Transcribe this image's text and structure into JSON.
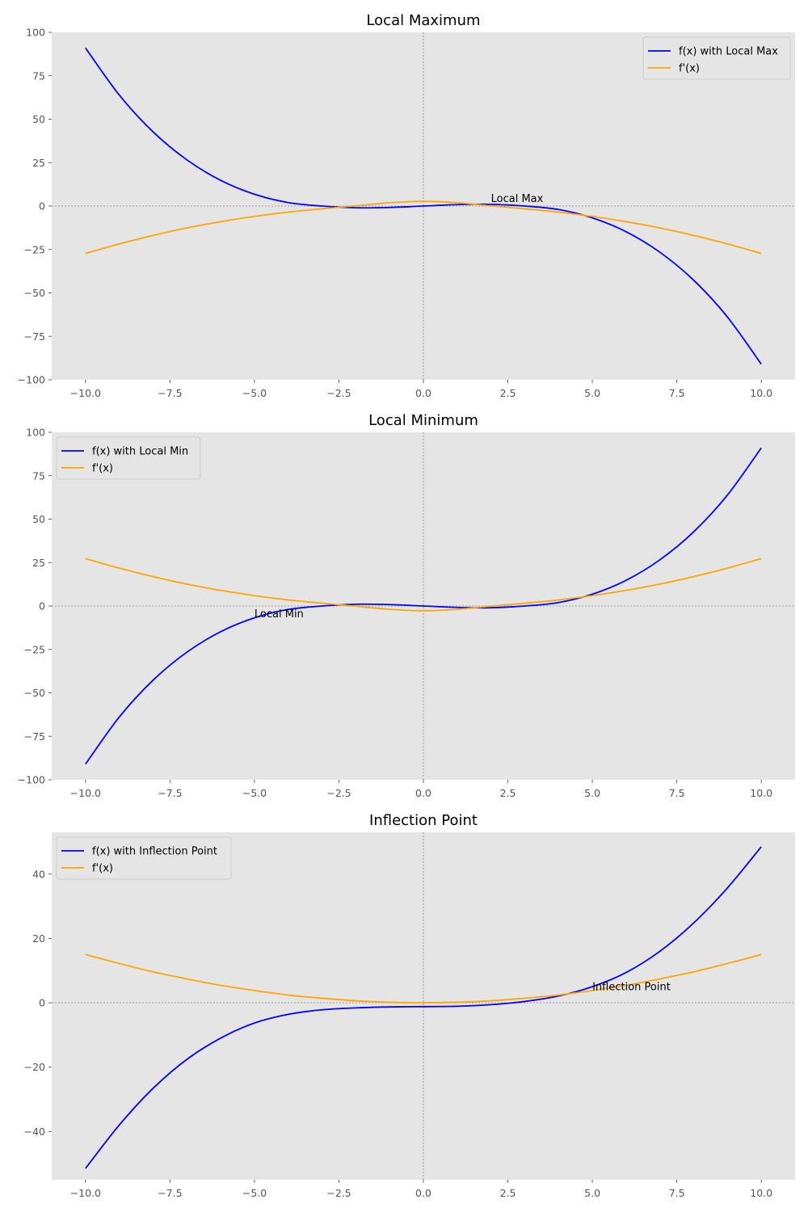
{
  "chart_data": [
    {
      "type": "line",
      "title": "Local Maximum",
      "xlabel": "",
      "ylabel": "",
      "xlim": [
        -11,
        11
      ],
      "ylim": [
        -100,
        100
      ],
      "x_ticks": [
        -10,
        -7.5,
        -5,
        -2.5,
        0,
        2.5,
        5,
        7.5,
        10
      ],
      "x_tick_labels": [
        "−10.0",
        "−7.5",
        "−5.0",
        "−2.5",
        "0.0",
        "2.5",
        "5.0",
        "7.5",
        "10.0"
      ],
      "y_ticks": [
        -100,
        -75,
        -50,
        -25,
        0,
        25,
        50,
        75,
        100
      ],
      "y_tick_labels": [
        "−100",
        "−75",
        "−50",
        "−25",
        "0",
        "25",
        "50",
        "75",
        "100"
      ],
      "legend_position": "top-right",
      "grid": false,
      "reference_lines": "dashed lines at x = 0 and y = 0",
      "series": [
        {
          "name": "f(x) with Local Max",
          "color": "#0000ff",
          "expression": "-x^3/11 + 3x/11... (cubic)",
          "x": [
            -10,
            -9,
            -8,
            -7,
            -6,
            -5,
            -4,
            -3,
            -2,
            -1,
            0,
            1,
            2,
            3,
            4,
            5,
            6,
            7,
            8,
            9,
            10
          ],
          "y": [
            91,
            63.9,
            42.7,
            26.6,
            14.8,
            6.8,
            2.0,
            0,
            -1.0,
            -0.8,
            0,
            0.8,
            1.0,
            0,
            -2.0,
            -6.8,
            -14.8,
            -26.6,
            -42.7,
            -63.9,
            -91
          ]
        },
        {
          "name": "f'(x)",
          "color": "#ffa500",
          "x": [
            -10,
            -9,
            -8,
            -7,
            -6,
            -5,
            -4,
            -3,
            -2,
            -1,
            0,
            1,
            2,
            3,
            4,
            5,
            6,
            7,
            8,
            9,
            10
          ],
          "y": [
            -27.3,
            -21.8,
            -16.9,
            -12.6,
            -9.0,
            -6.0,
            -3.5,
            -1.6,
            0.1,
            1.9,
            2.7,
            1.9,
            0.1,
            -1.6,
            -3.5,
            -6.0,
            -9.0,
            -12.6,
            -16.9,
            -21.8,
            -27.3
          ]
        }
      ],
      "annotations": [
        {
          "text": "Local Max",
          "x": 2,
          "y": 4.5
        }
      ]
    },
    {
      "type": "line",
      "title": "Local Minimum",
      "xlabel": "",
      "ylabel": "",
      "xlim": [
        -11,
        11
      ],
      "ylim": [
        -100,
        100
      ],
      "x_ticks": [
        -10,
        -7.5,
        -5,
        -2.5,
        0,
        2.5,
        5,
        7.5,
        10
      ],
      "x_tick_labels": [
        "−10.0",
        "−7.5",
        "−5.0",
        "−2.5",
        "0.0",
        "2.5",
        "5.0",
        "7.5",
        "10.0"
      ],
      "y_ticks": [
        -100,
        -75,
        -50,
        -25,
        0,
        25,
        50,
        75,
        100
      ],
      "y_tick_labels": [
        "−100",
        "−75",
        "−50",
        "−25",
        "0",
        "25",
        "50",
        "75",
        "100"
      ],
      "legend_position": "top-left",
      "grid": false,
      "reference_lines": "dashed lines at x = 0 and y = 0",
      "series": [
        {
          "name": "f(x) with Local Min",
          "color": "#0000ff",
          "x": [
            -10,
            -9,
            -8,
            -7,
            -6,
            -5,
            -4,
            -3,
            -2,
            -1,
            0,
            1,
            2,
            3,
            4,
            5,
            6,
            7,
            8,
            9,
            10
          ],
          "y": [
            -91,
            -63.9,
            -42.7,
            -26.6,
            -14.8,
            -6.8,
            -2.0,
            0,
            1.0,
            0.8,
            0,
            -0.8,
            -1.0,
            0,
            2.0,
            6.8,
            14.8,
            26.6,
            42.7,
            63.9,
            91
          ]
        },
        {
          "name": "f'(x)",
          "color": "#ffa500",
          "x": [
            -10,
            -9,
            -8,
            -7,
            -6,
            -5,
            -4,
            -3,
            -2,
            -1,
            0,
            1,
            2,
            3,
            4,
            5,
            6,
            7,
            8,
            9,
            10
          ],
          "y": [
            27.3,
            21.8,
            16.9,
            12.6,
            9.0,
            6.0,
            3.5,
            1.6,
            -0.1,
            -1.9,
            -2.7,
            -1.9,
            -0.1,
            1.6,
            3.5,
            6.0,
            9.0,
            12.6,
            16.9,
            21.8,
            27.3
          ]
        }
      ],
      "annotations": [
        {
          "text": "Local Min",
          "x": -5,
          "y": -4.5
        }
      ]
    },
    {
      "type": "line",
      "title": "Inflection Point",
      "xlabel": "",
      "ylabel": "",
      "xlim": [
        -11,
        11
      ],
      "ylim": [
        -55,
        53
      ],
      "x_ticks": [
        -10,
        -7.5,
        -5,
        -2.5,
        0,
        2.5,
        5,
        7.5,
        10
      ],
      "x_tick_labels": [
        "−10.0",
        "−7.5",
        "−5.0",
        "−2.5",
        "0.0",
        "2.5",
        "5.0",
        "7.5",
        "10.0"
      ],
      "y_ticks": [
        -40,
        -20,
        0,
        20,
        40
      ],
      "y_tick_labels": [
        "−40",
        "−20",
        "0",
        "20",
        "40"
      ],
      "legend_position": "top-left",
      "grid": false,
      "reference_lines": "dashed lines at x = 0 and y = 0",
      "series": [
        {
          "name": "f(x) with Inflection Point",
          "color": "#0000ff",
          "x": [
            -10,
            -9,
            -8,
            -7,
            -6,
            -5,
            -4,
            -3,
            -2,
            -1,
            0,
            1,
            2,
            3,
            4,
            5,
            6,
            7,
            8,
            9,
            10
          ],
          "y": [
            -51.5,
            -38.0,
            -26.6,
            -17.6,
            -11.0,
            -6.3,
            -3.6,
            -2.2,
            -1.6,
            -1.3,
            -1.2,
            -1.1,
            -0.6,
            0.4,
            2.1,
            5.0,
            9.4,
            16.0,
            24.8,
            35.7,
            48.5
          ]
        },
        {
          "name": "f'(x)",
          "color": "#ffa500",
          "x": [
            -10,
            -9,
            -8,
            -7,
            -6,
            -5,
            -4,
            -3,
            -2,
            -1,
            0,
            1,
            2,
            3,
            4,
            5,
            6,
            7,
            8,
            9,
            10
          ],
          "y": [
            15,
            12.2,
            9.6,
            7.4,
            5.4,
            3.8,
            2.4,
            1.4,
            0.6,
            0.15,
            0,
            0.15,
            0.6,
            1.4,
            2.4,
            3.8,
            5.4,
            7.4,
            9.6,
            12.2,
            15
          ]
        }
      ],
      "annotations": [
        {
          "text": "Inflection Point",
          "x": 5,
          "y": 5
        }
      ]
    }
  ]
}
